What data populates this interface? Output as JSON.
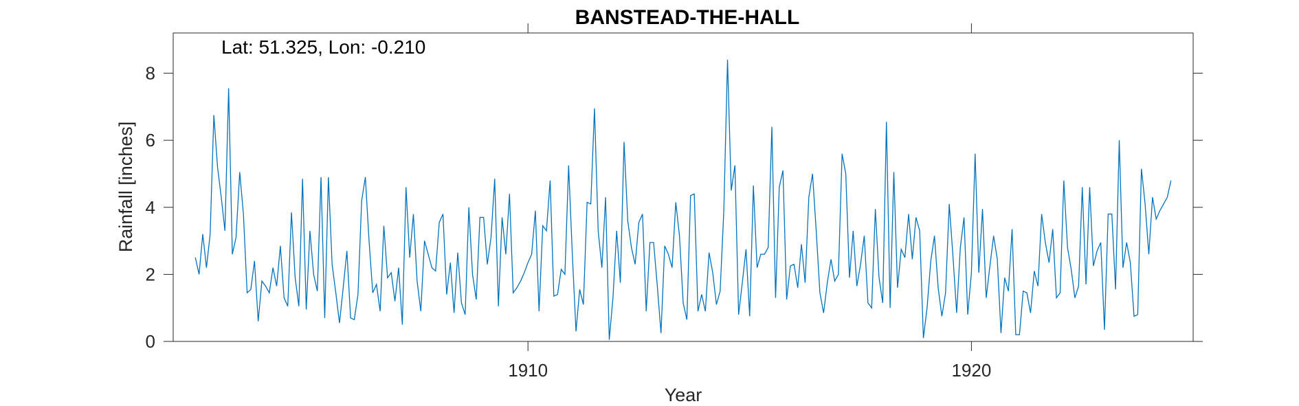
{
  "chart_data": {
    "type": "line",
    "title": "BANSTEAD-THE-HALL",
    "annotation": "Lat: 51.325, Lon: -0.210",
    "xlabel": "Year",
    "ylabel": "Rainfall [inches]",
    "xlim": [
      1902,
      1925
    ],
    "ylim": [
      0,
      9.2
    ],
    "x_ticks": [
      1910,
      1920
    ],
    "x_tick_labels": [
      "1910",
      "1920"
    ],
    "y_ticks": [
      0,
      2,
      4,
      6,
      8
    ],
    "y_tick_labels": [
      "0",
      "2",
      "4",
      "6",
      "8"
    ],
    "grid": false,
    "line_color": "#0072BD",
    "x_start": "1902-07",
    "x_step": "monthly",
    "series": [
      {
        "values": [
          2.5,
          2.0,
          3.2,
          2.2,
          3.2,
          6.75,
          5.2,
          4.3,
          3.3,
          7.55,
          2.6,
          3.1,
          5.05,
          3.8,
          1.45,
          1.55,
          2.4,
          0.6,
          1.8,
          1.65,
          1.45,
          2.2,
          1.65,
          2.85,
          1.3,
          1.05,
          3.85,
          1.9,
          1.05,
          4.85,
          0.95,
          3.3,
          2.0,
          1.5,
          4.9,
          0.7,
          4.9,
          2.3,
          1.45,
          0.55,
          1.6,
          2.7,
          0.7,
          0.65,
          1.4,
          4.2,
          4.9,
          3.0,
          1.45,
          1.7,
          0.9,
          3.45,
          1.9,
          2.05,
          1.2,
          2.2,
          0.5,
          4.6,
          2.5,
          3.8,
          1.8,
          0.9,
          3.0,
          2.6,
          2.2,
          2.1,
          3.55,
          3.8,
          1.4,
          2.35,
          0.85,
          2.65,
          1.15,
          0.8,
          4.0,
          2.0,
          1.25,
          3.7,
          3.7,
          2.3,
          3.1,
          4.85,
          1.05,
          3.7,
          2.6,
          4.4,
          1.45,
          1.6,
          1.8,
          2.05,
          2.35,
          2.6,
          3.9,
          0.9,
          3.45,
          3.3,
          4.8,
          1.35,
          1.4,
          2.15,
          2.0,
          5.25,
          2.6,
          0.3,
          1.55,
          1.1,
          4.15,
          4.1,
          6.95,
          3.3,
          2.2,
          4.3,
          0.05,
          1.3,
          3.3,
          1.75,
          5.95,
          3.6,
          2.8,
          2.3,
          3.55,
          3.8,
          0.9,
          2.95,
          2.95,
          1.65,
          0.25,
          2.85,
          2.6,
          2.2,
          4.15,
          3.15,
          1.15,
          0.65,
          4.35,
          4.4,
          0.9,
          1.4,
          0.9,
          2.65,
          2.05,
          1.1,
          1.5,
          3.9,
          8.4,
          4.5,
          5.25,
          0.8,
          1.75,
          2.75,
          0.75,
          4.65,
          2.2,
          2.6,
          2.6,
          2.8,
          6.4,
          1.3,
          4.6,
          5.1,
          1.25,
          2.25,
          2.3,
          1.6,
          2.9,
          1.75,
          4.3,
          5.0,
          3.3,
          1.45,
          0.85,
          1.75,
          2.45,
          1.8,
          2.0,
          5.6,
          5.0,
          1.9,
          3.3,
          1.65,
          2.3,
          3.15,
          1.15,
          1.0,
          3.95,
          1.9,
          1.15,
          6.55,
          1.0,
          5.05,
          1.6,
          2.75,
          2.5,
          3.8,
          2.45,
          3.7,
          3.3,
          0.1,
          1.0,
          2.4,
          3.15,
          1.6,
          0.75,
          1.45,
          4.1,
          2.55,
          0.85,
          2.8,
          3.7,
          0.8,
          2.05,
          5.6,
          2.05,
          3.95,
          1.3,
          2.25,
          3.15,
          2.45,
          0.25,
          1.9,
          1.5,
          3.35,
          0.2,
          0.2,
          1.5,
          1.45,
          0.85,
          2.1,
          1.65,
          3.8,
          2.95,
          2.35,
          3.35,
          1.3,
          1.45,
          4.8,
          2.8,
          2.15,
          1.3,
          1.65,
          4.6,
          1.7,
          4.6,
          2.25,
          2.7,
          2.95,
          0.35,
          3.8,
          3.8,
          1.55,
          6.0,
          2.2,
          2.95,
          2.35,
          0.75,
          0.8,
          5.15,
          4.1,
          2.6,
          4.3,
          3.65,
          3.9,
          4.1,
          4.3,
          4.8
        ]
      }
    ]
  }
}
